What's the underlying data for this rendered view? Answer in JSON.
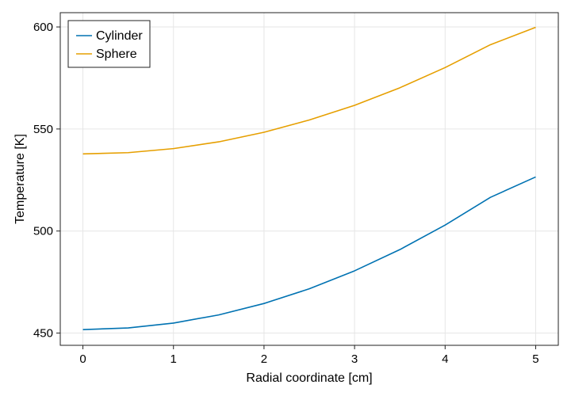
{
  "chart_data": {
    "type": "line",
    "title": "",
    "xlabel": "Radial coordinate [cm]",
    "ylabel": "Temperature [K]",
    "xlim": [
      -0.25,
      5.25
    ],
    "ylim": [
      444,
      607
    ],
    "xticks": [
      0,
      1,
      2,
      3,
      4,
      5
    ],
    "yticks": [
      450,
      500,
      550,
      600
    ],
    "grid": true,
    "legend_position": "top-left",
    "x": [
      0,
      0.5,
      1,
      1.5,
      2,
      2.5,
      3,
      3.5,
      4,
      4.5,
      5
    ],
    "series": [
      {
        "name": "Cylinder",
        "color": "#0072b2",
        "values": [
          451.7,
          452.5,
          454.9,
          458.9,
          464.5,
          471.7,
          480.5,
          490.9,
          502.9,
          516.5,
          526.5
        ]
      },
      {
        "name": "Sphere",
        "color": "#e69f00",
        "values": [
          537.8,
          538.4,
          540.4,
          543.7,
          548.4,
          554.4,
          561.6,
          570.2,
          580.1,
          591.3,
          599.8
        ]
      }
    ]
  }
}
